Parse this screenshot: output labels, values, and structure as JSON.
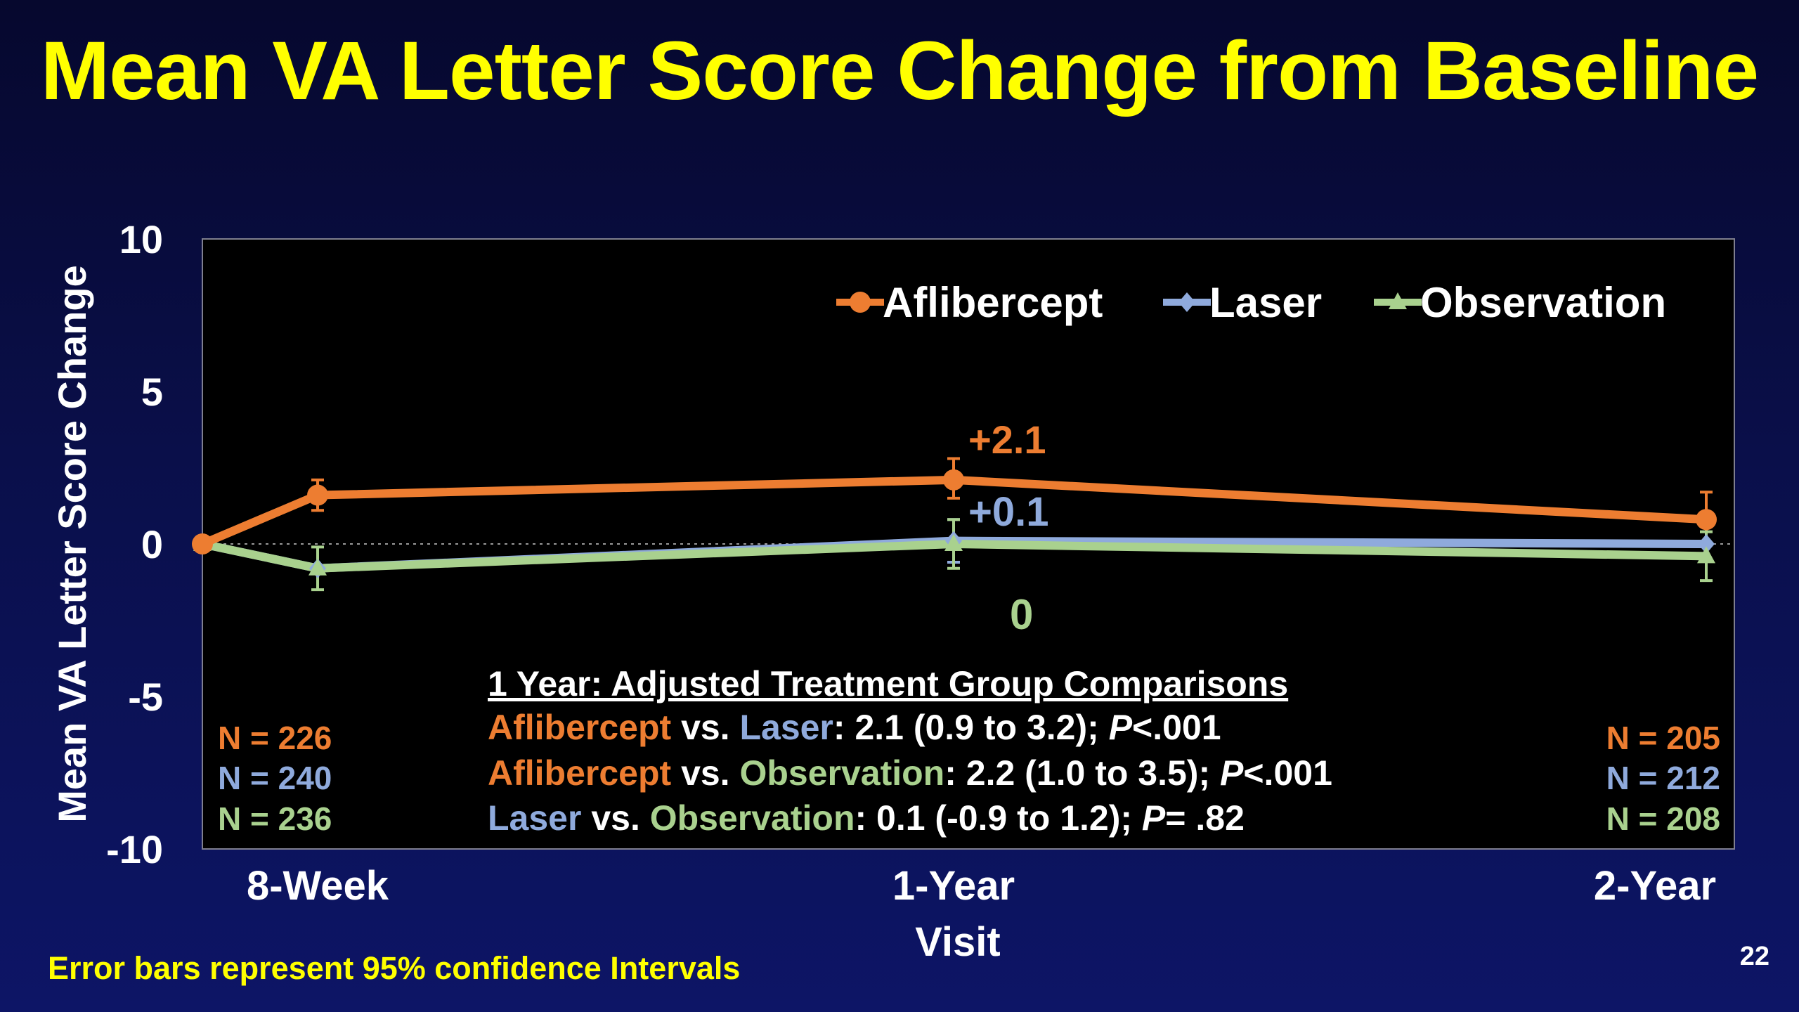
{
  "title": "Mean VA Letter Score Change from Baseline",
  "footnote": "Error bars represent 95% confidence Intervals",
  "page_number": "22",
  "colors": {
    "aflibercept": "#ed7d31",
    "laser": "#8faadc",
    "observation": "#a9d18e",
    "title": "#ffff00"
  },
  "chart_data": {
    "type": "line",
    "ylabel": "Mean VA Letter Score Change",
    "xlabel": "Visit",
    "ylim": [
      -10,
      10
    ],
    "yticks": [
      10,
      5,
      0,
      -5,
      -10
    ],
    "categories": [
      "",
      "8-Week",
      "1-Year",
      "2-Year"
    ],
    "x": [
      0,
      8,
      52,
      104
    ],
    "legend_position": "top-right",
    "series": [
      {
        "key": "aflibercept",
        "name": "Aflibercept",
        "marker": "circle",
        "values": [
          0,
          1.6,
          2.1,
          0.8
        ],
        "ci_low": [
          null,
          1.1,
          1.5,
          0.0
        ],
        "ci_high": [
          null,
          2.1,
          2.8,
          1.7
        ]
      },
      {
        "key": "laser",
        "name": "Laser",
        "marker": "diamond",
        "values": [
          0,
          -0.8,
          0.1,
          0.0
        ],
        "ci_low": [
          null,
          null,
          -0.6,
          null
        ],
        "ci_high": [
          null,
          null,
          0.8,
          null
        ]
      },
      {
        "key": "observation",
        "name": "Observation",
        "marker": "triangle",
        "values": [
          0,
          -0.8,
          0.0,
          -0.4
        ],
        "ci_low": [
          null,
          -1.5,
          -0.8,
          -1.2
        ],
        "ci_high": [
          null,
          -0.1,
          0.8,
          0.4
        ]
      }
    ],
    "annotations": [
      {
        "key": "aflibercept",
        "text": "+2.1"
      },
      {
        "key": "laser",
        "text": "+0.1"
      },
      {
        "key": "observation",
        "text": "0"
      }
    ]
  },
  "n_counts": {
    "week8": [
      {
        "key": "aflibercept",
        "text": "N = 226"
      },
      {
        "key": "laser",
        "text": "N = 240"
      },
      {
        "key": "observation",
        "text": "N = 236"
      }
    ],
    "year2": [
      {
        "key": "aflibercept",
        "text": "N = 205"
      },
      {
        "key": "laser",
        "text": "N = 212"
      },
      {
        "key": "observation",
        "text": "N = 208"
      }
    ]
  },
  "comparisons": {
    "heading": "1 Year: Adjusted Treatment Group Comparisons",
    "rows": [
      {
        "a": "Aflibercept",
        "a_key": "aflibercept",
        "vs": " vs. ",
        "b": "Laser",
        "b_key": "laser",
        "result": ": 2.1 (0.9 to 3.2); ",
        "p_label": "P",
        "p_value": "<.001"
      },
      {
        "a": "Aflibercept",
        "a_key": "aflibercept",
        "vs": " vs. ",
        "b": "Observation",
        "b_key": "observation",
        "result": ": 2.2 (1.0 to 3.5); ",
        "p_label": "P",
        "p_value": "<.001"
      },
      {
        "a": "Laser",
        "a_key": "laser",
        "vs": " vs. ",
        "b": "Observation",
        "b_key": "observation",
        "result": ": 0.1 (-0.9 to 1.2); ",
        "p_label": "P",
        "p_value": "= .82"
      }
    ]
  }
}
